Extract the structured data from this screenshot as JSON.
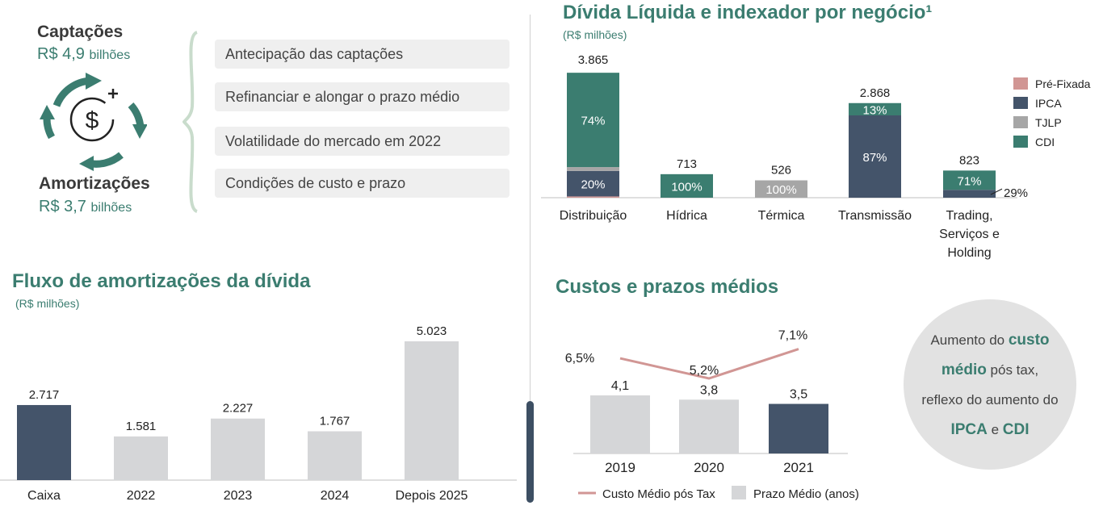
{
  "captacoes": {
    "title": "Captações",
    "value": "R$ 4,9",
    "unit": "bilhões"
  },
  "amortizacoes": {
    "title": "Amortizações",
    "value": "R$ 3,7",
    "unit": "bilhões"
  },
  "reasons": [
    "Antecipação das captações",
    "Refinanciar e alongar o prazo médio",
    "Volatilidade do mercado em 2022",
    "Condições de custo e prazo"
  ],
  "note": {
    "line1a": "Aumento do ",
    "line1b": "custo",
    "line2a": "médio",
    "line2b": " pós tax,",
    "line3": "reflexo do aumento do",
    "line4a": "IPCA",
    "line4b": " e ",
    "line4c": "CDI"
  },
  "colors": {
    "accent": "#3b7d70",
    "navy": "#44546a",
    "gray": "#d5d6d8",
    "pink": "#d19694",
    "tjlp": "#a6a6a6"
  },
  "chart_data": [
    {
      "type": "bar",
      "title": "Fluxo de amortizações da dívida",
      "subtitle": "(R$ milhões)",
      "categories": [
        "Caixa",
        "2022",
        "2023",
        "2024",
        "Depois 2025"
      ],
      "values": [
        2717,
        1581,
        2227,
        1767,
        5023
      ],
      "value_labels": [
        "2.717",
        "1.581",
        "2.227",
        "1.767",
        "5.023"
      ],
      "ylim": [
        0,
        5500
      ]
    },
    {
      "type": "bar",
      "stacked": true,
      "title": "Dívida Líquida e indexador por negócio¹",
      "subtitle": "(R$ milhões)",
      "categories": [
        "Distribuição",
        "Hídrica",
        "Térmica",
        "Transmissão",
        "Trading, Serviços e Holding"
      ],
      "totals": [
        3865,
        713,
        526,
        2868,
        823
      ],
      "total_labels": [
        "3.865",
        "713",
        "526",
        "2.868",
        "823"
      ],
      "series": [
        {
          "name": "Pré-Fixada",
          "shares": [
            0.01,
            0,
            0,
            0,
            0
          ]
        },
        {
          "name": "IPCA",
          "shares": [
            0.2,
            0,
            0,
            0.87,
            0.29
          ]
        },
        {
          "name": "TJLP",
          "shares": [
            0.03,
            0,
            1.0,
            0,
            0
          ]
        },
        {
          "name": "CDI",
          "shares": [
            0.74,
            1.0,
            0,
            0.13,
            0.71
          ]
        }
      ],
      "labels": [
        [
          "",
          "20%",
          "",
          "74%"
        ],
        [
          "",
          "",
          "",
          "100%"
        ],
        [
          "",
          "",
          "100%",
          ""
        ],
        [
          "",
          "87%",
          "",
          "13%"
        ],
        [
          "",
          "29%",
          "",
          "71%"
        ]
      ],
      "legend": "right"
    },
    {
      "type": "bar",
      "title": "Custos e prazos médios",
      "categories": [
        "2019",
        "2020",
        "2021"
      ],
      "series": [
        {
          "name": "Prazo Médio (anos)",
          "type": "bar",
          "values": [
            4.1,
            3.8,
            3.5
          ],
          "labels": [
            "4,1",
            "3,8",
            "3,5"
          ]
        },
        {
          "name": "Custo Médio pós Tax",
          "type": "line",
          "values": [
            6.5,
            5.2,
            7.1
          ],
          "labels": [
            "6,5%",
            "5,2%",
            "7,1%"
          ]
        }
      ],
      "legend": "bottom"
    }
  ]
}
